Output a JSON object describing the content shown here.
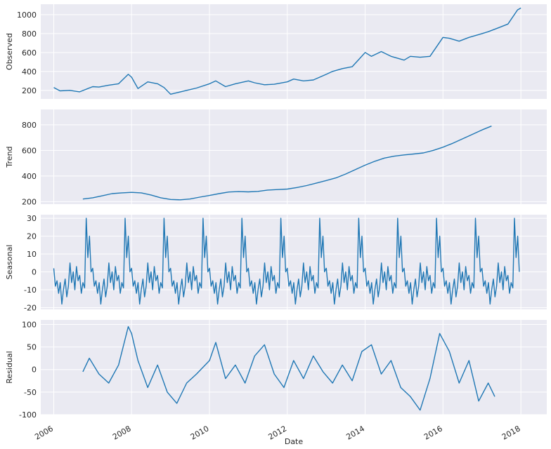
{
  "chart_data": [
    {
      "type": "line",
      "panel": "observed",
      "ylabel": "Observed",
      "xlim": [
        "2005-09-01",
        "2018-09-01"
      ],
      "ylim": [
        110,
        1110
      ],
      "yticks": [
        200,
        400,
        600,
        800,
        1000
      ],
      "x": [
        "2006-01-01",
        "2006-03-01",
        "2006-06-01",
        "2006-09-01",
        "2007-01-01",
        "2007-03-01",
        "2007-06-01",
        "2007-09-01",
        "2007-12-01",
        "2008-01-01",
        "2008-03-01",
        "2008-06-01",
        "2008-09-01",
        "2008-11-01",
        "2009-01-01",
        "2009-03-01",
        "2009-06-01",
        "2009-09-01",
        "2010-01-01",
        "2010-03-01",
        "2010-06-01",
        "2010-09-01",
        "2011-01-01",
        "2011-03-01",
        "2011-06-01",
        "2011-09-01",
        "2012-01-01",
        "2012-03-01",
        "2012-06-01",
        "2012-09-01",
        "2013-01-01",
        "2013-03-01",
        "2013-06-01",
        "2013-09-01",
        "2014-01-01",
        "2014-03-01",
        "2014-06-01",
        "2014-09-01",
        "2015-01-01",
        "2015-03-01",
        "2015-06-01",
        "2015-09-01",
        "2016-01-01",
        "2016-03-01",
        "2016-06-01",
        "2016-09-01",
        "2017-01-01",
        "2017-03-01",
        "2017-06-01",
        "2017-09-01",
        "2017-12-01",
        "2018-01-01"
      ],
      "values": [
        230,
        195,
        200,
        185,
        240,
        235,
        255,
        270,
        370,
        340,
        220,
        290,
        270,
        230,
        160,
        175,
        200,
        225,
        270,
        300,
        240,
        270,
        300,
        280,
        260,
        265,
        290,
        320,
        300,
        310,
        370,
        400,
        430,
        450,
        600,
        560,
        610,
        560,
        520,
        560,
        550,
        560,
        760,
        750,
        720,
        760,
        800,
        820,
        860,
        900,
        1050,
        1070
      ]
    },
    {
      "type": "line",
      "panel": "trend",
      "ylabel": "Trend",
      "xlim": [
        "2005-09-01",
        "2018-09-01"
      ],
      "ylim": [
        180,
        920
      ],
      "yticks": [
        200,
        400,
        600,
        800
      ],
      "x": [
        "2006-10-01",
        "2007-01-01",
        "2007-04-01",
        "2007-07-01",
        "2007-10-01",
        "2008-01-01",
        "2008-04-01",
        "2008-07-01",
        "2008-10-01",
        "2009-01-01",
        "2009-04-01",
        "2009-07-01",
        "2009-10-01",
        "2010-01-01",
        "2010-04-01",
        "2010-07-01",
        "2010-10-01",
        "2011-01-01",
        "2011-04-01",
        "2011-07-01",
        "2011-10-01",
        "2012-01-01",
        "2012-04-01",
        "2012-07-01",
        "2012-10-01",
        "2013-01-01",
        "2013-04-01",
        "2013-07-01",
        "2013-10-01",
        "2014-01-01",
        "2014-04-01",
        "2014-07-01",
        "2014-10-01",
        "2015-01-01",
        "2015-04-01",
        "2015-07-01",
        "2015-10-01",
        "2016-01-01",
        "2016-04-01",
        "2016-07-01",
        "2016-10-01",
        "2017-01-01",
        "2017-04-01"
      ],
      "values": [
        220,
        230,
        245,
        262,
        268,
        272,
        268,
        252,
        230,
        217,
        214,
        220,
        235,
        248,
        262,
        275,
        278,
        276,
        280,
        290,
        294,
        298,
        310,
        325,
        345,
        365,
        385,
        415,
        450,
        485,
        515,
        540,
        555,
        565,
        572,
        580,
        600,
        625,
        655,
        690,
        725,
        760,
        790
      ]
    },
    {
      "type": "line",
      "panel": "seasonal",
      "ylabel": "Seasonal",
      "xlim": [
        "2005-09-01",
        "2018-09-01"
      ],
      "ylim": [
        -21,
        32
      ],
      "yticks": [
        -20,
        -10,
        0,
        10,
        20,
        30
      ],
      "x_start": "2006-01-01",
      "x_end": "2018-01-01",
      "period_years": 1,
      "one_period_offsets_months": [
        0,
        0.5,
        1,
        1.5,
        2,
        2.5,
        3,
        3.5,
        4,
        4.5,
        5,
        5.5,
        6,
        6.5,
        7,
        7.5,
        8,
        8.5,
        9,
        9.5,
        10,
        10.5,
        11,
        11.5,
        12
      ],
      "one_period_values": [
        2,
        -8,
        -5,
        -12,
        -6,
        -18,
        -10,
        -4,
        -14,
        -8,
        5,
        -6,
        0,
        -10,
        3,
        -5,
        -2,
        -12,
        -6,
        -9,
        30,
        8,
        20,
        0,
        2
      ]
    },
    {
      "type": "line",
      "panel": "residual",
      "ylabel": "Residual",
      "xlabel": "Date",
      "xlim": [
        "2005-09-01",
        "2018-09-01"
      ],
      "ylim": [
        -100,
        110
      ],
      "yticks": [
        -100,
        -50,
        0,
        50,
        100
      ],
      "xticks": [
        "2006",
        "2008",
        "2010",
        "2012",
        "2014",
        "2016",
        "2018"
      ],
      "x": [
        "2006-10-01",
        "2006-12-01",
        "2007-03-01",
        "2007-06-01",
        "2007-09-01",
        "2007-12-01",
        "2008-01-01",
        "2008-03-01",
        "2008-06-01",
        "2008-09-01",
        "2008-12-01",
        "2009-03-01",
        "2009-06-01",
        "2009-09-01",
        "2010-01-01",
        "2010-03-01",
        "2010-06-01",
        "2010-09-01",
        "2010-12-01",
        "2011-03-01",
        "2011-06-01",
        "2011-09-01",
        "2011-12-01",
        "2012-03-01",
        "2012-06-01",
        "2012-09-01",
        "2012-12-01",
        "2013-03-01",
        "2013-06-01",
        "2013-09-01",
        "2013-12-01",
        "2014-03-01",
        "2014-06-01",
        "2014-09-01",
        "2014-12-01",
        "2015-03-01",
        "2015-06-01",
        "2015-09-01",
        "2015-12-01",
        "2016-03-01",
        "2016-06-01",
        "2016-09-01",
        "2016-12-01",
        "2017-03-01",
        "2017-05-01"
      ],
      "values": [
        -5,
        25,
        -10,
        -30,
        10,
        95,
        80,
        20,
        -40,
        10,
        -50,
        -75,
        -30,
        -10,
        20,
        60,
        -20,
        10,
        -30,
        30,
        55,
        -10,
        -40,
        20,
        -20,
        30,
        -5,
        -30,
        10,
        -25,
        40,
        55,
        -10,
        20,
        -40,
        -60,
        -90,
        -20,
        80,
        40,
        -30,
        20,
        -70,
        -30,
        -60
      ]
    }
  ]
}
